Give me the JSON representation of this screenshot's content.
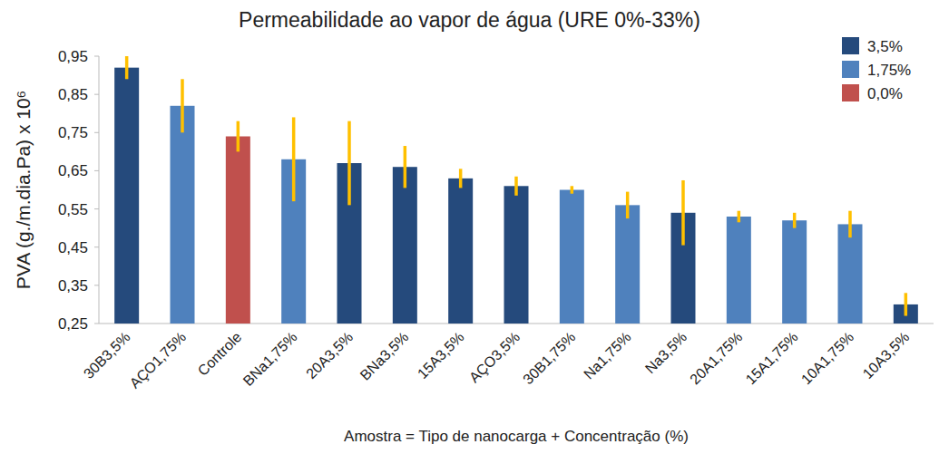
{
  "chart_data": {
    "type": "bar",
    "title": "Permeabilidade ao vapor de água (URE 0%-33%)",
    "x_label": "Amostra = Tipo de nanocarga + Concentração (%)",
    "y_label": "PVA (g./m.dia.Pa) x 10⁶",
    "categories": [
      "30B3,5%",
      "AÇO1,75%",
      "Controle",
      "BNa1,75%",
      "20A3,5%",
      "BNa3,5%",
      "15A3,5%",
      "AÇO3,5%",
      "30B1,75%",
      "Na1,75%",
      "Na3,5%",
      "20A1,75%",
      "15A1,75%",
      "10A1,75%",
      "10A3,5%"
    ],
    "series": [
      {
        "name": "3,5%",
        "color": "#254a7c",
        "values": [
          0.92,
          null,
          null,
          null,
          0.67,
          0.66,
          0.63,
          0.61,
          null,
          null,
          0.54,
          null,
          null,
          null,
          0.3
        ],
        "errors": [
          0.03,
          null,
          null,
          null,
          0.11,
          0.055,
          0.025,
          0.025,
          null,
          null,
          0.085,
          null,
          null,
          null,
          0.03
        ]
      },
      {
        "name": "1,75%",
        "color": "#4f81bd",
        "values": [
          null,
          0.82,
          null,
          0.68,
          null,
          null,
          null,
          null,
          0.6,
          0.56,
          null,
          0.53,
          0.52,
          0.51,
          null
        ],
        "errors": [
          null,
          0.07,
          null,
          0.11,
          null,
          null,
          null,
          null,
          0.01,
          0.035,
          null,
          0.015,
          0.02,
          0.035,
          null
        ]
      },
      {
        "name": "0,0%",
        "color": "#c0504d",
        "values": [
          null,
          null,
          0.74,
          null,
          null,
          null,
          null,
          null,
          null,
          null,
          null,
          null,
          null,
          null,
          null
        ],
        "errors": [
          null,
          null,
          0.04,
          null,
          null,
          null,
          null,
          null,
          null,
          null,
          null,
          null,
          null,
          null,
          null
        ]
      }
    ],
    "stacked": true,
    "ylim": [
      0.25,
      0.95
    ],
    "yticks": [
      {
        "value": 0.25,
        "label": "0,25"
      },
      {
        "value": 0.35,
        "label": "0,35"
      },
      {
        "value": 0.45,
        "label": "0,45"
      },
      {
        "value": 0.55,
        "label": "0,55"
      },
      {
        "value": 0.65,
        "label": "0,65"
      },
      {
        "value": 0.75,
        "label": "0,75"
      },
      {
        "value": 0.85,
        "label": "0,85"
      },
      {
        "value": 0.95,
        "label": "0,95"
      }
    ],
    "grid": false,
    "legend": "top-right"
  }
}
